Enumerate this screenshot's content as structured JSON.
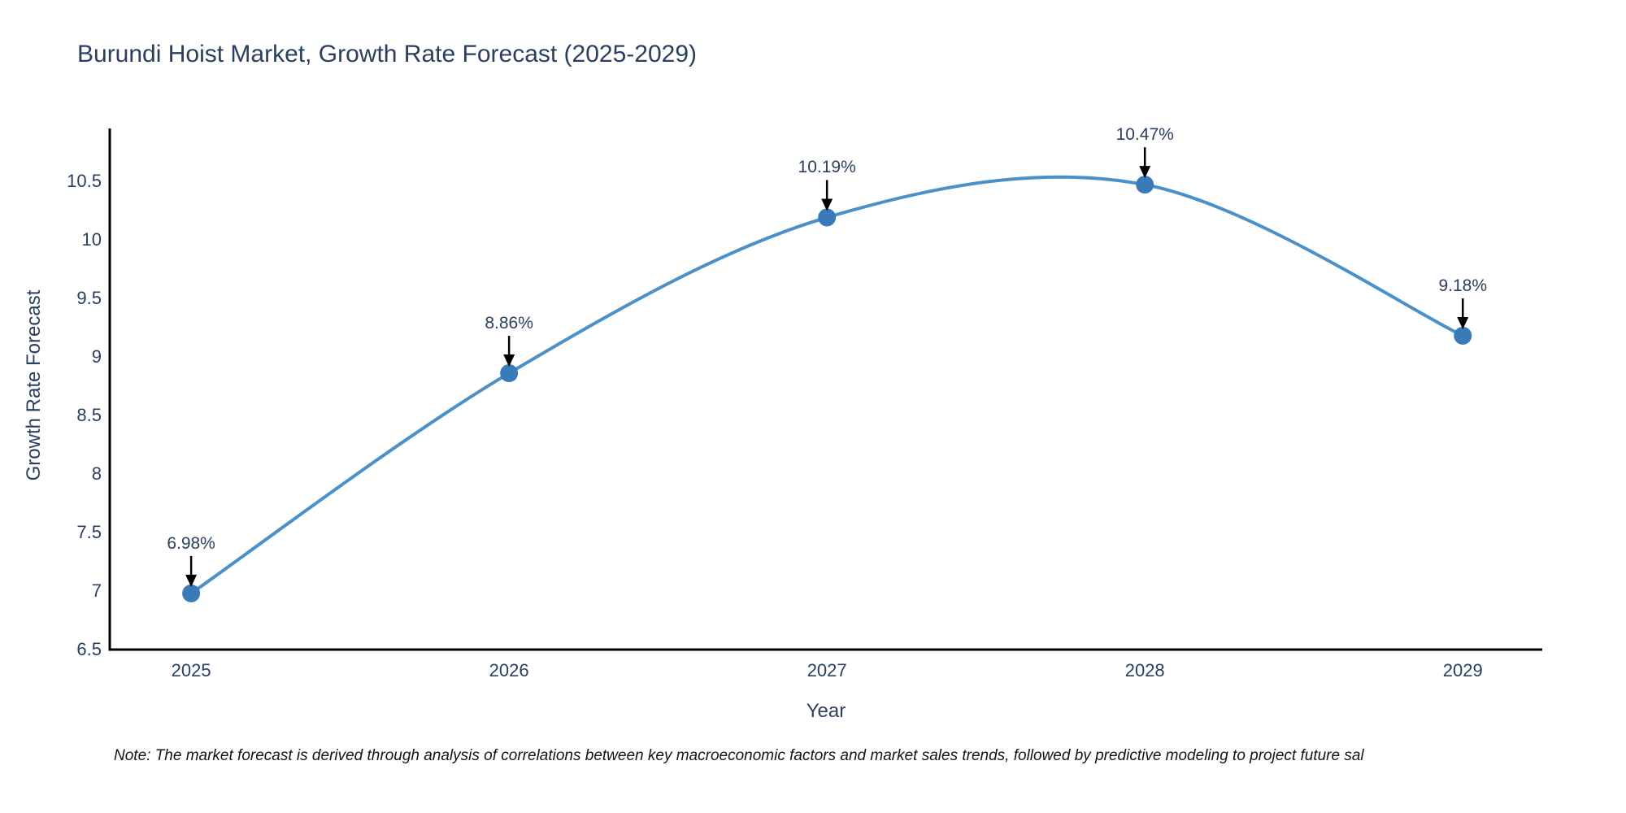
{
  "title": "Burundi Hoist Market, Growth Rate Forecast (2025-2029)",
  "note": "Note: The market forecast is derived through analysis of correlations between key macroeconomic factors and market sales trends, followed by predictive modeling to project future sal",
  "chart_data": {
    "type": "line",
    "title": "Burundi Hoist Market, Growth Rate Forecast (2025-2029)",
    "xlabel": "Year",
    "ylabel": "Growth Rate Forecast",
    "x": [
      2025,
      2026,
      2027,
      2028,
      2029
    ],
    "series": [
      {
        "name": "Growth Rate Forecast",
        "values": [
          6.98,
          8.86,
          10.19,
          10.47,
          9.18
        ]
      }
    ],
    "point_labels": [
      "6.98%",
      "8.86%",
      "10.19%",
      "10.47%",
      "9.18%"
    ],
    "x_tick_labels": [
      "2025",
      "2026",
      "2027",
      "2028",
      "2029"
    ],
    "y_tick_values": [
      6.5,
      7,
      7.5,
      8,
      8.5,
      9,
      9.5,
      10,
      10.5
    ],
    "y_tick_labels": [
      "6.5",
      "7",
      "7.5",
      "8",
      "8.5",
      "9",
      "9.5",
      "10",
      "10.5"
    ],
    "xlim": [
      2024.744,
      2029.25
    ],
    "ylim": [
      6.5,
      10.95
    ],
    "grid": false,
    "legend": "none",
    "line_shape": "spline",
    "marker": "circle",
    "annotation_arrows": true,
    "colors": {
      "line": "#4a90c9",
      "marker": "#3a7ab8",
      "axis_line": "#000000",
      "text": "#2a3f5f",
      "arrow": "#000000",
      "background": "#ffffff"
    }
  }
}
